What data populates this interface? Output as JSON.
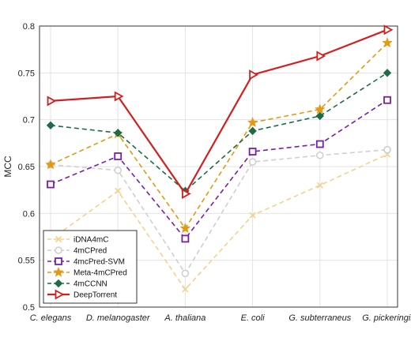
{
  "chart_data": {
    "type": "line",
    "ylabel": "MCC",
    "ylim": [
      0.5,
      0.8
    ],
    "yticks": [
      "0.5",
      "0.55",
      "0.6",
      "0.65",
      "0.7",
      "0.75",
      "0.8"
    ],
    "grid": true,
    "legend_position": "bottom-left",
    "categories": [
      "C. elegans",
      "D. melanogaster",
      "A. thaliana",
      "E. coli",
      "G. subterraneus",
      "G. pickeringii"
    ],
    "series": [
      {
        "name": "iDNA4mC",
        "values": [
          0.572,
          0.624,
          0.519,
          0.598,
          0.63,
          0.663
        ],
        "color": "#f5d28a",
        "dash": "dash",
        "marker": "x-icon"
      },
      {
        "name": "4mCPred",
        "values": [
          0.652,
          0.646,
          0.536,
          0.655,
          0.662,
          0.668
        ],
        "color": "#cfcfcf",
        "dash": "dash",
        "marker": "circle-icon"
      },
      {
        "name": "4mcPred-SVM",
        "values": [
          0.631,
          0.661,
          0.573,
          0.666,
          0.674,
          0.721
        ],
        "color": "#7a1ea8",
        "dash": "dash",
        "marker": "square-icon"
      },
      {
        "name": "Meta-4mCPred",
        "values": [
          0.652,
          0.685,
          0.584,
          0.697,
          0.711,
          0.782
        ],
        "color": "#e39a12",
        "dash": "dash",
        "marker": "star-icon"
      },
      {
        "name": "4mCCNN",
        "values": [
          0.694,
          0.686,
          0.624,
          0.688,
          0.704,
          0.75
        ],
        "color": "#1e6b46",
        "dash": "dash",
        "marker": "diamond-icon"
      },
      {
        "name": "DeepTorrent",
        "values": [
          0.72,
          0.725,
          0.621,
          0.748,
          0.768,
          0.796
        ],
        "color": "#d41f1f",
        "dash": "solid",
        "marker": "triangle-right-icon"
      }
    ]
  }
}
